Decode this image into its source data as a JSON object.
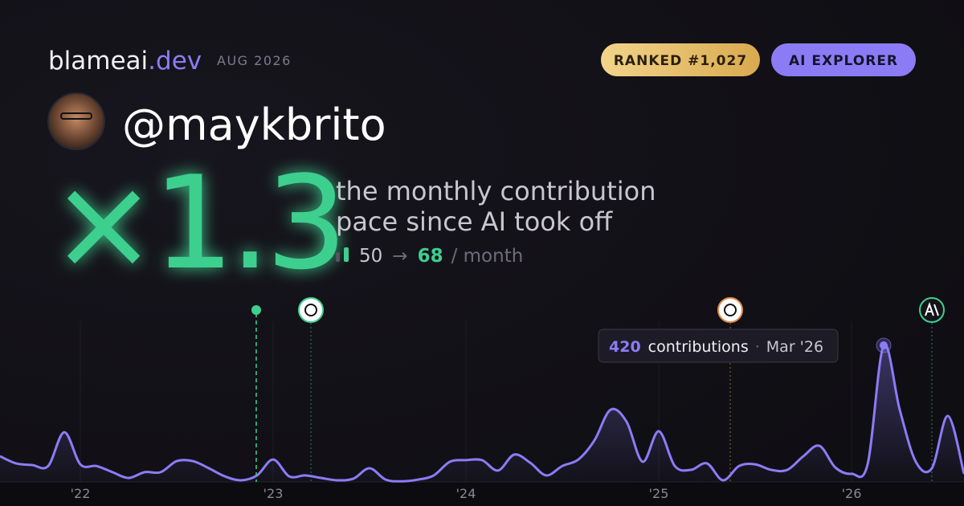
{
  "header": {
    "brand": "blameai",
    "brand_tld": ".dev",
    "date": "AUG 2026",
    "rank_badge": "RANKED #1,027",
    "tier_badge": "AI EXPLORER"
  },
  "profile": {
    "handle": "@maykbrito"
  },
  "hero": {
    "multiplier": "×1.3",
    "caption_lines": [
      "the monthly contribution",
      "pace since AI took off"
    ],
    "before": 50,
    "arrow": "→",
    "after": 68,
    "unit": "/ month"
  },
  "chart_data": {
    "type": "area",
    "color": "#8b7cf6",
    "categories": [
      null,
      null,
      null,
      null,
      null,
      "'22",
      null,
      null,
      null,
      null,
      null,
      null,
      null,
      null,
      null,
      null,
      null,
      "'23",
      null,
      null,
      null,
      null,
      null,
      null,
      null,
      null,
      null,
      null,
      null,
      "'24",
      null,
      null,
      null,
      null,
      null,
      null,
      null,
      null,
      null,
      null,
      null,
      "'25",
      null,
      null,
      null,
      null,
      null,
      null,
      null,
      null,
      null,
      null,
      null,
      "'26",
      null,
      null,
      null,
      null,
      null,
      null,
      null
    ],
    "values": [
      79,
      57,
      52,
      49,
      153,
      54,
      49,
      30,
      12,
      30,
      30,
      64,
      64,
      42,
      17,
      5,
      20,
      69,
      17,
      20,
      12,
      5,
      10,
      42,
      7,
      2,
      7,
      20,
      62,
      67,
      67,
      35,
      84,
      59,
      20,
      49,
      69,
      128,
      222,
      185,
      62,
      156,
      49,
      37,
      57,
      5,
      49,
      54,
      37,
      37,
      79,
      111,
      44,
      25,
      54,
      420,
      222,
      62,
      42,
      203,
      25
    ],
    "ylim": [
      0,
      420
    ],
    "grid": true,
    "tooltip": {
      "value": 420,
      "label": "contributions",
      "separator": "·",
      "date": "Mar '26"
    }
  }
}
